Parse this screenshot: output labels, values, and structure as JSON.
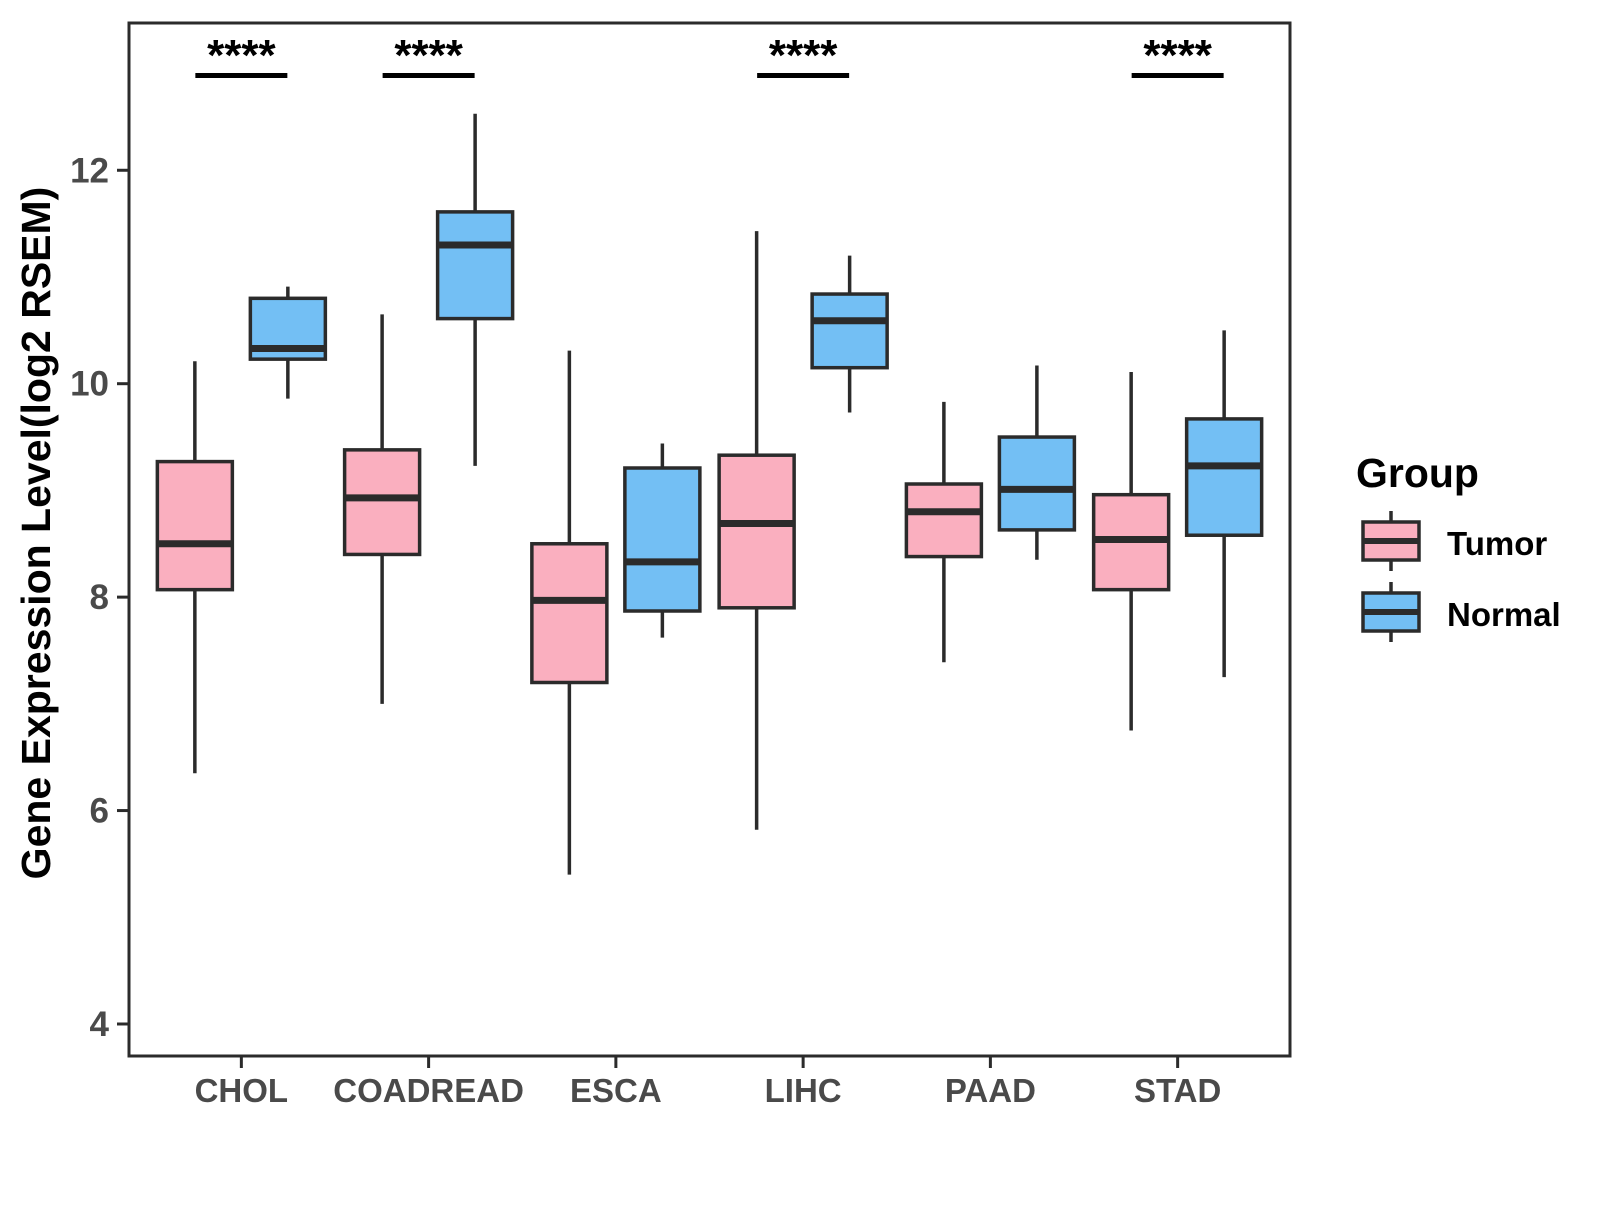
{
  "chart_data": {
    "type": "boxplot",
    "title": "",
    "xlabel": "",
    "ylabel": "Gene Expression Level(log2 RSEM)",
    "categories": [
      "CHOL",
      "COADREAD",
      "ESCA",
      "LIHC",
      "PAAD",
      "STAD"
    ],
    "y_ticks": [
      "4",
      "6",
      "8",
      "10",
      "12"
    ],
    "y_tick_values": [
      4,
      6,
      8,
      10,
      12
    ],
    "y_range": [
      3.7,
      13.38
    ],
    "grid": false,
    "legend_position": "right",
    "groups": [
      {
        "name": "Tumor",
        "color": "#FAAFBF",
        "boxes": [
          {
            "category": "CHOL",
            "min": 6.35,
            "q1": 8.07,
            "median": 8.5,
            "q3": 9.27,
            "max": 10.21
          },
          {
            "category": "COADREAD",
            "min": 7.0,
            "q1": 8.4,
            "median": 8.93,
            "q3": 9.38,
            "max": 10.65
          },
          {
            "category": "ESCA",
            "min": 5.4,
            "q1": 7.2,
            "median": 7.97,
            "q3": 8.5,
            "max": 10.31
          },
          {
            "category": "LIHC",
            "min": 5.82,
            "q1": 7.9,
            "median": 8.69,
            "q3": 9.33,
            "max": 11.43
          },
          {
            "category": "PAAD",
            "min": 7.39,
            "q1": 8.38,
            "median": 8.8,
            "q3": 9.06,
            "max": 9.83
          },
          {
            "category": "STAD",
            "min": 6.75,
            "q1": 8.07,
            "median": 8.54,
            "q3": 8.96,
            "max": 10.11
          }
        ]
      },
      {
        "name": "Normal",
        "color": "#73BFF4",
        "boxes": [
          {
            "category": "CHOL",
            "min": 9.86,
            "q1": 10.23,
            "median": 10.33,
            "q3": 10.8,
            "max": 10.91
          },
          {
            "category": "COADREAD",
            "min": 9.23,
            "q1": 10.61,
            "median": 11.3,
            "q3": 11.61,
            "max": 12.53
          },
          {
            "category": "ESCA",
            "min": 7.62,
            "q1": 7.87,
            "median": 8.33,
            "q3": 9.21,
            "max": 9.44
          },
          {
            "category": "LIHC",
            "min": 9.73,
            "q1": 10.15,
            "median": 10.59,
            "q3": 10.84,
            "max": 11.2
          },
          {
            "category": "PAAD",
            "min": 8.35,
            "q1": 8.63,
            "median": 9.01,
            "q3": 9.5,
            "max": 10.17
          },
          {
            "category": "STAD",
            "min": 7.25,
            "q1": 8.58,
            "median": 9.23,
            "q3": 9.67,
            "max": 10.5
          }
        ]
      }
    ],
    "significance": [
      {
        "category": "CHOL",
        "label": "****"
      },
      {
        "category": "COADREAD",
        "label": "****"
      },
      {
        "category": "LIHC",
        "label": "****"
      },
      {
        "category": "STAD",
        "label": "****"
      }
    ],
    "legend": {
      "title": "Group",
      "items": [
        {
          "label": "Tumor",
          "color": "#FAAFBF"
        },
        {
          "label": "Normal",
          "color": "#73BFF4"
        }
      ]
    },
    "style_colors": {
      "box_stroke": "#2B2B2B",
      "panel_border": "#2B2B2B",
      "tick_label": "#4A4A4A",
      "axis_title": "#000000",
      "annotation": "#000000",
      "background": "#FFFFFF"
    }
  }
}
